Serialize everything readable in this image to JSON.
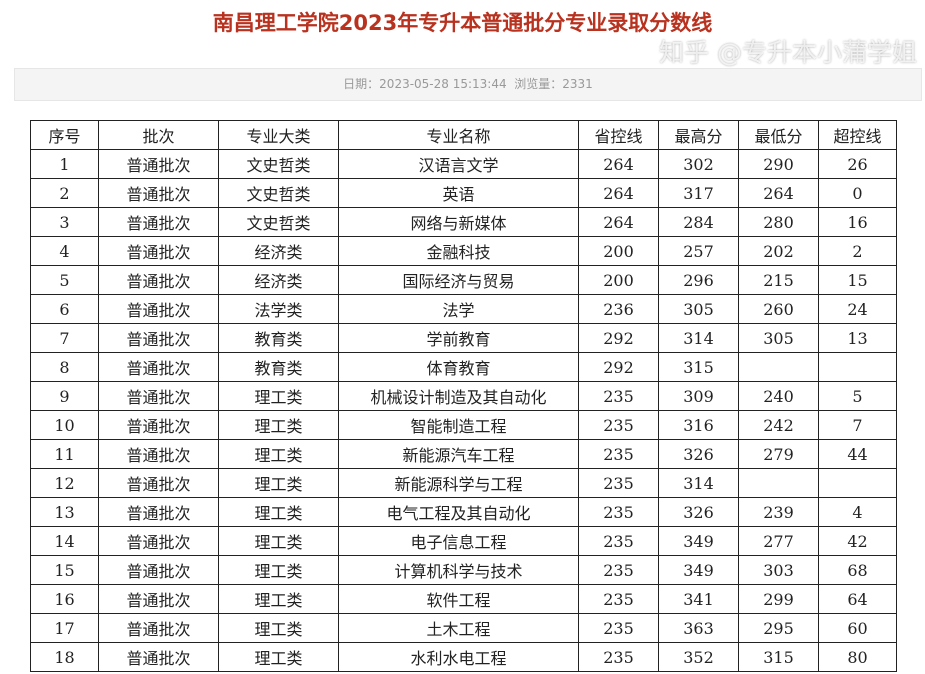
{
  "title": "南昌理工学院2023年专升本普通批分专业录取分数线",
  "meta": {
    "date_label": "日期：",
    "date": "2023-05-28 15:13:44",
    "views_label": "浏览量：",
    "views": "2331"
  },
  "table": {
    "headers": [
      "序号",
      "批次",
      "专业大类",
      "专业名称",
      "省控线",
      "最高分",
      "最低分",
      "超控线"
    ],
    "rows": [
      [
        "1",
        "普通批次",
        "文史哲类",
        "汉语言文学",
        "264",
        "302",
        "290",
        "26"
      ],
      [
        "2",
        "普通批次",
        "文史哲类",
        "英语",
        "264",
        "317",
        "264",
        "0"
      ],
      [
        "3",
        "普通批次",
        "文史哲类",
        "网络与新媒体",
        "264",
        "284",
        "280",
        "16"
      ],
      [
        "4",
        "普通批次",
        "经济类",
        "金融科技",
        "200",
        "257",
        "202",
        "2"
      ],
      [
        "5",
        "普通批次",
        "经济类",
        "国际经济与贸易",
        "200",
        "296",
        "215",
        "15"
      ],
      [
        "6",
        "普通批次",
        "法学类",
        "法学",
        "236",
        "305",
        "260",
        "24"
      ],
      [
        "7",
        "普通批次",
        "教育类",
        "学前教育",
        "292",
        "314",
        "305",
        "13"
      ],
      [
        "8",
        "普通批次",
        "教育类",
        "体育教育",
        "292",
        "315",
        "",
        ""
      ],
      [
        "9",
        "普通批次",
        "理工类",
        "机械设计制造及其自动化",
        "235",
        "309",
        "240",
        "5"
      ],
      [
        "10",
        "普通批次",
        "理工类",
        "智能制造工程",
        "235",
        "316",
        "242",
        "7"
      ],
      [
        "11",
        "普通批次",
        "理工类",
        "新能源汽车工程",
        "235",
        "326",
        "279",
        "44"
      ],
      [
        "12",
        "普通批次",
        "理工类",
        "新能源科学与工程",
        "235",
        "314",
        "",
        ""
      ],
      [
        "13",
        "普通批次",
        "理工类",
        "电气工程及其自动化",
        "235",
        "326",
        "239",
        "4"
      ],
      [
        "14",
        "普通批次",
        "理工类",
        "电子信息工程",
        "235",
        "349",
        "277",
        "42"
      ],
      [
        "15",
        "普通批次",
        "理工类",
        "计算机科学与技术",
        "235",
        "349",
        "303",
        "68"
      ],
      [
        "16",
        "普通批次",
        "理工类",
        "软件工程",
        "235",
        "341",
        "299",
        "64"
      ],
      [
        "17",
        "普通批次",
        "理工类",
        "土木工程",
        "235",
        "363",
        "295",
        "60"
      ],
      [
        "18",
        "普通批次",
        "理工类",
        "水利水电工程",
        "235",
        "352",
        "315",
        "80"
      ]
    ]
  },
  "watermark": "知乎 @专升本小蒲学姐"
}
